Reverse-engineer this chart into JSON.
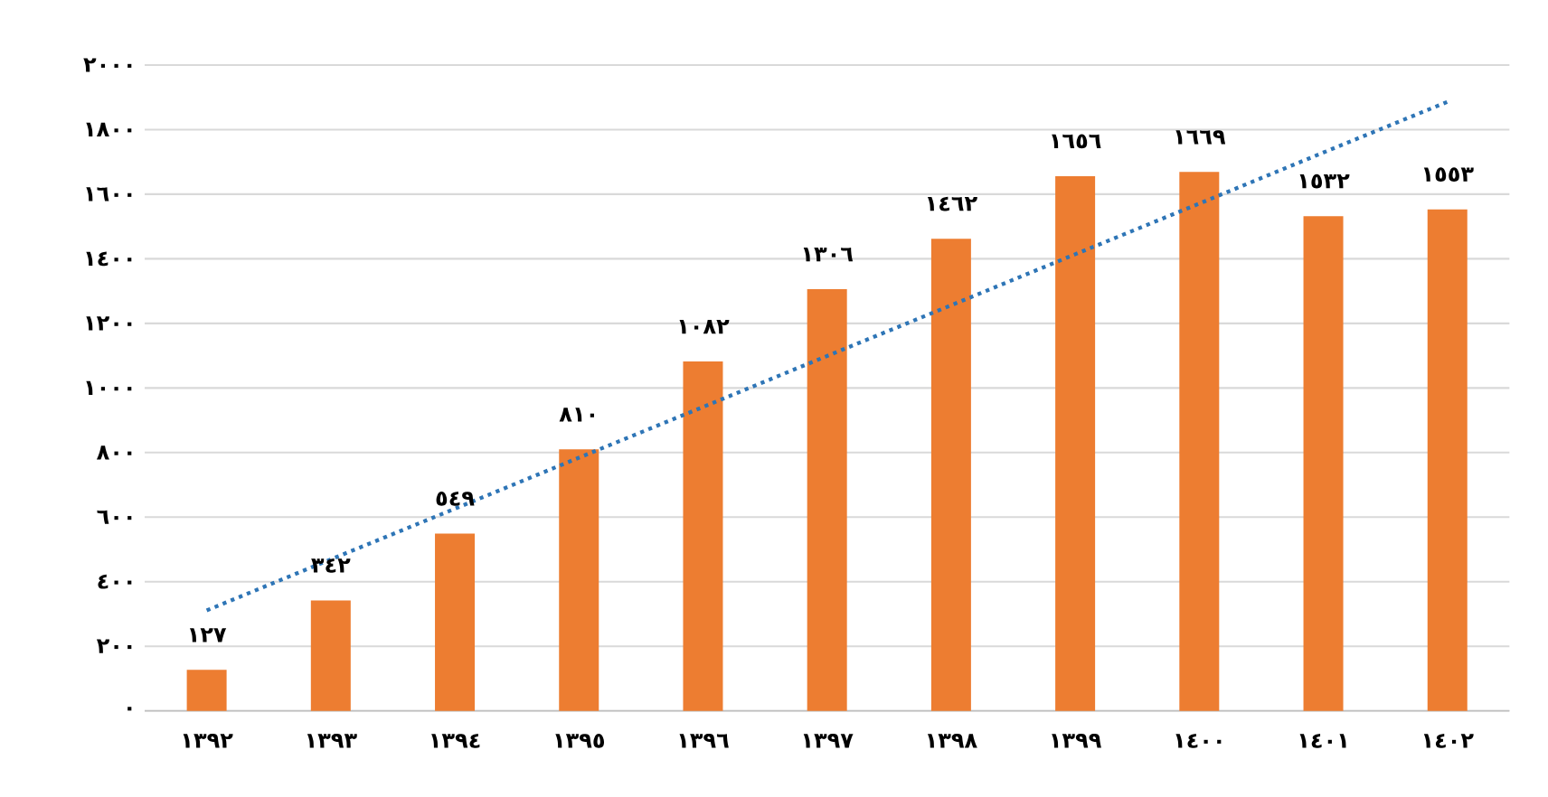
{
  "chart_data": {
    "type": "bar",
    "categories": [
      "١٣٩٢",
      "١٣٩٣",
      "١٣٩٤",
      "١٣٩٥",
      "١٣٩٦",
      "١٣٩٧",
      "١٣٩٨",
      "١٣٩٩",
      "١٤٠٠",
      "١٤٠١",
      "١٤٠٢"
    ],
    "series": [
      {
        "color": "#ed7d31",
        "values": [
          127,
          342,
          549,
          810,
          1082,
          1306,
          1462,
          1656,
          1669,
          1532,
          1553
        ],
        "value_labels": [
          "١٢٧",
          "٣٤٢",
          "٥٤٩",
          "٨١٠",
          "١٠٨٢",
          "١٣٠٦",
          "١٤٦٢",
          "١٦٥٦",
          "١٦٦٩",
          "١٥٣٢",
          "١٥٥٣"
        ]
      },
      {
        "type": "line",
        "color": "#2e75b6",
        "line_style": "dotted",
        "marker": "none",
        "values": [
          311,
          469,
          626,
          784,
          941,
          1099,
          1256,
          1414,
          1571,
          1729,
          1886
        ]
      }
    ],
    "ylim": [
      0,
      2000
    ],
    "yticks": [
      {
        "value": 0,
        "label": "٠"
      },
      {
        "value": 200,
        "label": "٢٠٠"
      },
      {
        "value": 400,
        "label": "٤٠٠"
      },
      {
        "value": 600,
        "label": "٦٠٠"
      },
      {
        "value": 800,
        "label": "٨٠٠"
      },
      {
        "value": 1000,
        "label": "١٠٠٠"
      },
      {
        "value": 1200,
        "label": "١٢٠٠"
      },
      {
        "value": 1400,
        "label": "١٤٠٠"
      },
      {
        "value": 1600,
        "label": "١٦٠٠"
      },
      {
        "value": 1800,
        "label": "١٨٠٠"
      },
      {
        "value": 2000,
        "label": "٢٠٠٠"
      }
    ],
    "grid": "y"
  }
}
